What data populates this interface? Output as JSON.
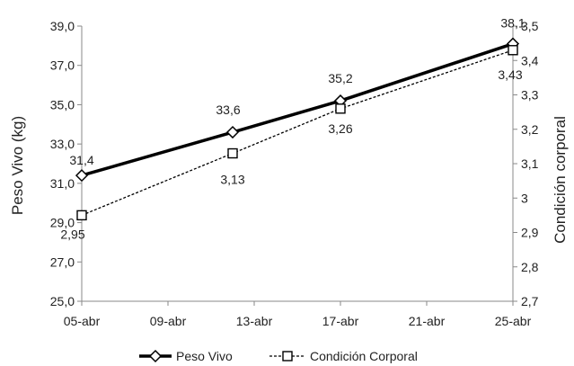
{
  "chart_data": {
    "type": "line",
    "x_ticks": [
      "05-abr",
      "09-abr",
      "13-abr",
      "17-abr",
      "21-abr",
      "25-abr"
    ],
    "x_range": [
      "05-abr",
      "25-abr"
    ],
    "ylabel_left": "Peso Vivo (kg)",
    "ylabel_right": "Condición corporal",
    "y_left": {
      "min": 25.0,
      "max": 39.0,
      "ticks": [
        "25,0",
        "27,0",
        "29,0",
        "31,0",
        "33,0",
        "35,0",
        "37,0",
        "39,0"
      ]
    },
    "y_right": {
      "min": 2.7,
      "max": 3.5,
      "ticks": [
        "2,7",
        "2,8",
        "2,9",
        "3",
        "3,1",
        "3,2",
        "3,3",
        "3,4",
        "3,5"
      ]
    },
    "grid": false,
    "legend_position": "bottom",
    "series": [
      {
        "name": "Peso Vivo",
        "axis": "left",
        "style": "solid-thick",
        "marker": "diamond",
        "color": "#000000",
        "x": [
          "05-abr",
          "12-abr",
          "17-abr",
          "25-abr"
        ],
        "values": [
          31.4,
          33.6,
          35.2,
          38.1
        ],
        "labels": [
          "31,4",
          "33,6",
          "35,2",
          "38,1"
        ]
      },
      {
        "name": "Condición Corporal",
        "axis": "right",
        "style": "dashed",
        "marker": "square",
        "color": "#000000",
        "x": [
          "05-abr",
          "12-abr",
          "17-abr",
          "25-abr"
        ],
        "values": [
          2.95,
          3.13,
          3.26,
          3.43
        ],
        "labels": [
          "2,95",
          "3,13",
          "3,26",
          "3,43"
        ]
      }
    ]
  }
}
